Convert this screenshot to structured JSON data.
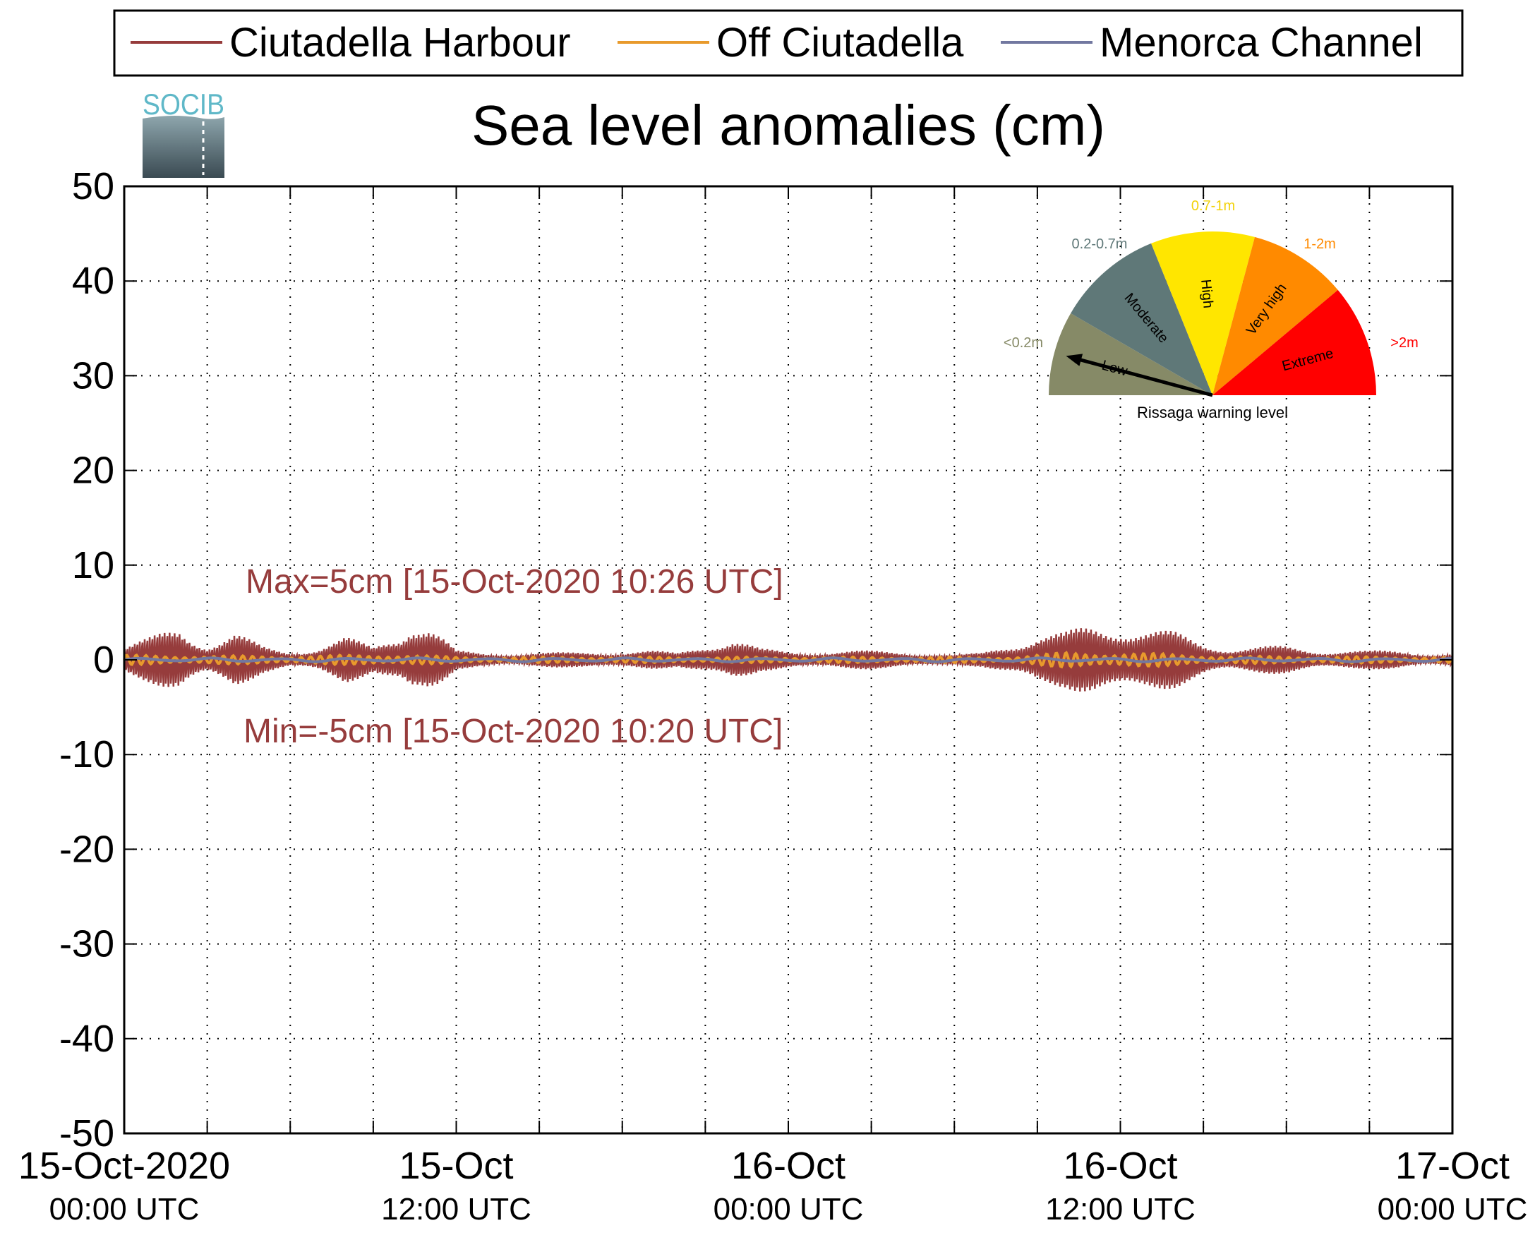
{
  "chart_data": {
    "type": "line",
    "title": "Sea level anomalies (cm)",
    "ylim": [
      -50,
      50
    ],
    "yticks": [
      50,
      40,
      30,
      20,
      10,
      0,
      -10,
      -20,
      -30,
      -40,
      -50
    ],
    "ytick_labels": [
      "50",
      "40",
      "30",
      "20",
      "10",
      "0",
      "-10",
      "-20",
      "-30",
      "-40",
      "-50"
    ],
    "x_range_hours": [
      0,
      48
    ],
    "x_unit": "hours since 15-Oct-2020 00:00 UTC",
    "xtick_labels": [
      {
        "hour": 0,
        "line1": "15-Oct-2020",
        "line2": "00:00 UTC"
      },
      {
        "hour": 12,
        "line1": "15-Oct",
        "line2": "12:00 UTC"
      },
      {
        "hour": 24,
        "line1": "16-Oct",
        "line2": "00:00 UTC"
      },
      {
        "hour": 36,
        "line1": "16-Oct",
        "line2": "12:00 UTC"
      },
      {
        "hour": 48,
        "line1": "17-Oct",
        "line2": "00:00 UTC"
      }
    ],
    "grid": true,
    "legend_position": "top",
    "series": [
      {
        "name": "Ciutadella Harbour",
        "color": "#963c3c",
        "sample_hours": [
          0,
          1,
          2,
          3,
          4,
          5,
          6,
          7,
          8,
          9,
          10,
          10.33,
          10.43,
          11,
          12,
          13,
          14,
          15,
          16,
          17,
          18,
          19,
          20,
          21,
          22,
          23,
          24,
          25,
          26,
          27,
          28,
          29,
          30,
          31,
          32,
          33,
          34,
          35,
          36,
          37,
          38,
          39,
          40,
          41,
          42,
          43,
          44,
          45,
          46,
          47,
          48
        ],
        "amplitude_cm": [
          1.5,
          2.5,
          4,
          2,
          3,
          1.5,
          1,
          1.5,
          2.5,
          1.5,
          3.5,
          5,
          5,
          4,
          1,
          0.8,
          0.8,
          0.8,
          0.8,
          1,
          1,
          1,
          0.8,
          2,
          2.5,
          1.2,
          1,
          1,
          1,
          1,
          1,
          0.8,
          0.5,
          0.8,
          2,
          3,
          3,
          4,
          4.5,
          3.5,
          3,
          2,
          1.5,
          1.5,
          1.5,
          1.2,
          1.2,
          1,
          1,
          0.8,
          0.8
        ]
      },
      {
        "name": "Off Ciutadella",
        "color": "#e89a2c",
        "sample_hours": [
          0,
          6,
          10,
          12,
          24,
          32,
          34,
          36,
          38,
          40,
          48
        ],
        "amplitude_cm": [
          0.5,
          0.4,
          0.6,
          0.3,
          0.3,
          0.3,
          0.8,
          0.8,
          0.6,
          0.4,
          0.3
        ]
      },
      {
        "name": "Menorca Channel",
        "color": "#7278a0",
        "sample_hours": [
          0,
          12,
          24,
          36,
          48
        ],
        "amplitude_cm": [
          0.2,
          0.2,
          0.2,
          0.2,
          0.2
        ]
      }
    ],
    "annotations": [
      {
        "text": "Max=5cm [15-Oct-2020 10:26 UTC]"
      },
      {
        "text": "Min=-5cm [15-Oct-2020 10:20 UTC]"
      }
    ]
  },
  "logo": {
    "text": "SOCIB"
  },
  "gauge": {
    "caption": "Rissaga warning level",
    "needle_level": "Low",
    "segments": [
      {
        "label": "Low",
        "range": "<0.2m",
        "color": "#868a67",
        "range_color": "#868a67"
      },
      {
        "label": "Moderate",
        "range": "0.2-0.7m",
        "color": "#5f7878",
        "range_color": "#5f7878"
      },
      {
        "label": "High",
        "range": "0.7-1m",
        "color": "#ffe600",
        "range_color": "#f2d20a"
      },
      {
        "label": "Very high",
        "range": "1-2m",
        "color": "#ff8a00",
        "range_color": "#ff8a00"
      },
      {
        "label": "Extreme",
        "range": ">2m",
        "color": "#ff0000",
        "range_color": "#ff0000"
      }
    ]
  }
}
